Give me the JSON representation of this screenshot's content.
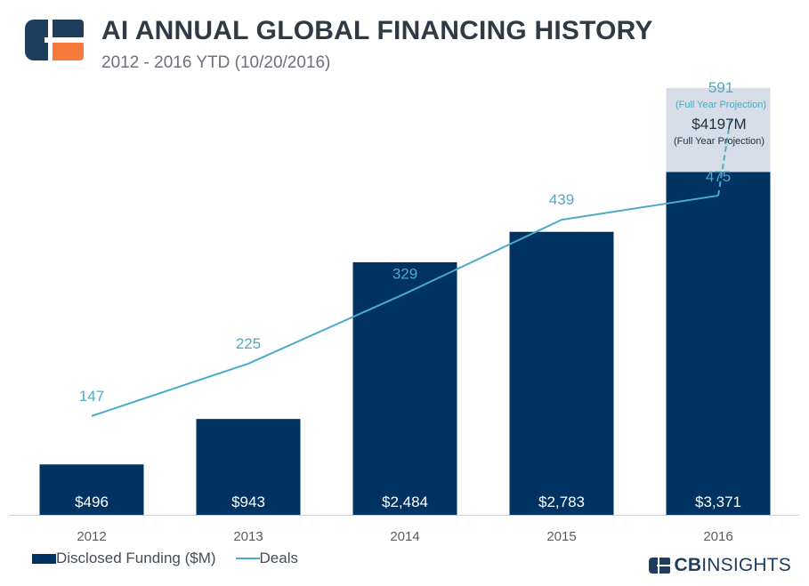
{
  "header": {
    "title": "AI ANNUAL GLOBAL FINANCING HISTORY",
    "subtitle": "2012 - 2016 YTD (10/20/2016)"
  },
  "colors": {
    "bar": "#003262",
    "projection_bar": "#d6dde6",
    "line": "#4aabc9",
    "logo_blue": "#1f3d5c",
    "logo_orange": "#f5793a"
  },
  "chart_data": {
    "type": "bar",
    "title": "AI ANNUAL GLOBAL FINANCING HISTORY",
    "subtitle": "2012 - 2016 YTD (10/20/2016)",
    "categories": [
      "2012",
      "2013",
      "2014",
      "2015",
      "2016"
    ],
    "series": [
      {
        "name": "Disclosed Funding ($M)",
        "kind": "bar",
        "values": [
          496,
          943,
          2484,
          2783,
          3371
        ],
        "labels": [
          "$496",
          "$943",
          "$2,484",
          "$2,783",
          "$3,371"
        ]
      },
      {
        "name": "Deals",
        "kind": "line",
        "values": [
          147,
          225,
          329,
          439,
          475
        ],
        "labels": [
          "147",
          "225",
          "329",
          "439",
          "475"
        ]
      }
    ],
    "projection": {
      "category": "2016",
      "funding_value": 4197,
      "funding_label": "$4197M",
      "funding_note": "(Full  Year Projection)",
      "deals_value": 591,
      "deals_label": "591",
      "deals_note": "(Full Year Projection)"
    },
    "funding_ylim": [
      0,
      4197
    ],
    "deals_ylim": [
      0,
      635
    ],
    "grid": false,
    "legend": "bottom-left"
  },
  "brand": {
    "bold": "CB",
    "light": "INSIGHTS"
  }
}
